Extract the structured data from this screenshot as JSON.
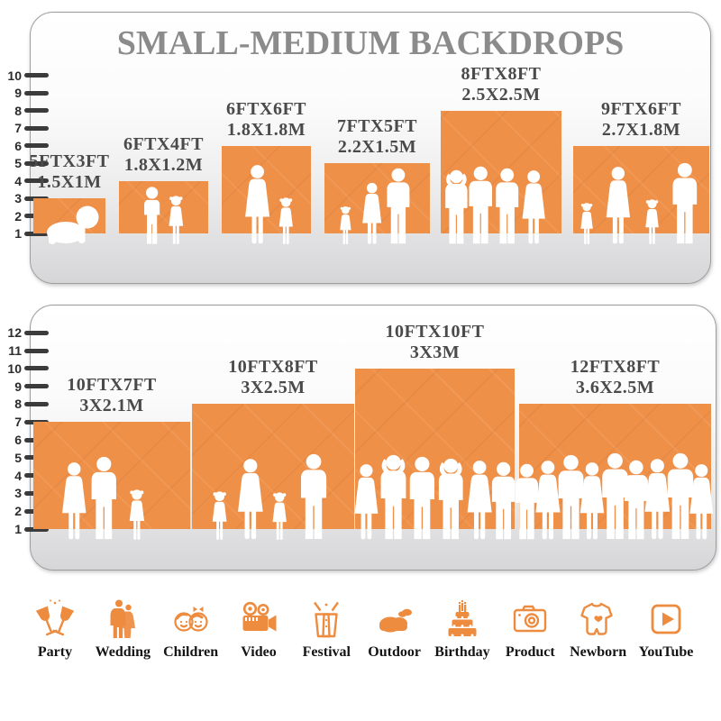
{
  "title": "SMALL-MEDIUM BACKDROPS",
  "colors": {
    "accent": "#ED8B3F",
    "bar": "#EF9049",
    "title": "#8B8B8B",
    "label": "#4A4A4A"
  },
  "panels": [
    {
      "name": "small-medium-top",
      "ruler_max": 10,
      "bars": [
        {
          "size_ft": "5FTX3FT",
          "size_m": "1.5X1M",
          "width_ft": 5,
          "height_ft": 3,
          "figures": [
            "baby"
          ]
        },
        {
          "size_ft": "6FTX4FT",
          "size_m": "1.8X1.2M",
          "width_ft": 6,
          "height_ft": 4,
          "figures": [
            "boy",
            "girl"
          ]
        },
        {
          "size_ft": "6FTX6FT",
          "size_m": "1.8X1.8M",
          "width_ft": 6,
          "height_ft": 6,
          "figures": [
            "woman",
            "girl"
          ]
        },
        {
          "size_ft": "7FTX5FT",
          "size_m": "2.2X1.5M",
          "width_ft": 7,
          "height_ft": 5,
          "figures": [
            "girl",
            "woman",
            "man"
          ]
        },
        {
          "size_ft": "8FTX8FT",
          "size_m": "2.5X2.5M",
          "width_ft": 8,
          "height_ft": 8,
          "figures": [
            "man-up",
            "man",
            "man",
            "woman"
          ]
        },
        {
          "size_ft": "9FTX6FT",
          "size_m": "2.7X1.8M",
          "width_ft": 9,
          "height_ft": 6,
          "figures": [
            "girl",
            "woman",
            "girl",
            "man"
          ]
        }
      ]
    },
    {
      "name": "medium-bottom",
      "ruler_max": 12,
      "bars": [
        {
          "size_ft": "10FTX7FT",
          "size_m": "3X2.1M",
          "width_ft": 10,
          "height_ft": 7,
          "figures": [
            "woman",
            "man",
            "girl"
          ]
        },
        {
          "size_ft": "10FTX8FT",
          "size_m": "3X2.5M",
          "width_ft": 10,
          "height_ft": 8,
          "figures": [
            "girl",
            "woman",
            "girl",
            "man"
          ]
        },
        {
          "size_ft": "10FTX10FT",
          "size_m": "3X3M",
          "width_ft": 10,
          "height_ft": 10,
          "figures": [
            "woman",
            "man-up",
            "man",
            "man-up",
            "woman",
            "man"
          ]
        },
        {
          "size_ft": "12FTX8FT",
          "size_m": "3.6X2.5M",
          "width_ft": 12,
          "height_ft": 8,
          "figures": [
            "man",
            "woman",
            "man",
            "woman",
            "man",
            "man",
            "woman",
            "man",
            "woman"
          ]
        }
      ]
    }
  ],
  "categories": [
    {
      "label": "Party",
      "icon": "party"
    },
    {
      "label": "Wedding",
      "icon": "wedding"
    },
    {
      "label": "Children",
      "icon": "children"
    },
    {
      "label": "Video",
      "icon": "video"
    },
    {
      "label": "Festival",
      "icon": "festival"
    },
    {
      "label": "Outdoor",
      "icon": "outdoor"
    },
    {
      "label": "Birthday",
      "icon": "birthday"
    },
    {
      "label": "Product",
      "icon": "product"
    },
    {
      "label": "Newborn",
      "icon": "newborn"
    },
    {
      "label": "YouTube",
      "icon": "youtube"
    }
  ],
  "chart_data": [
    {
      "type": "bar",
      "title": "SMALL-MEDIUM BACKDROPS",
      "categories": [
        "5FTX3FT",
        "6FTX4FT",
        "6FTX6FT",
        "7FTX5FT",
        "8FTX8FT",
        "9FTX6FT"
      ],
      "series": [
        {
          "name": "height_ft",
          "values": [
            3,
            4,
            6,
            5,
            8,
            6
          ]
        },
        {
          "name": "width_ft",
          "values": [
            5,
            6,
            6,
            7,
            8,
            9
          ]
        }
      ],
      "metric_labels": [
        "1.5X1M",
        "1.8X1.2M",
        "1.8X1.8M",
        "2.2X1.5M",
        "2.5X2.5M",
        "2.7X1.8M"
      ],
      "xlabel": "",
      "ylabel": "feet",
      "ylim": [
        0,
        10
      ],
      "grid": false,
      "legend": false
    },
    {
      "type": "bar",
      "title": "",
      "categories": [
        "10FTX7FT",
        "10FTX8FT",
        "10FTX10FT",
        "12FTX8FT"
      ],
      "series": [
        {
          "name": "height_ft",
          "values": [
            7,
            8,
            10,
            8
          ]
        },
        {
          "name": "width_ft",
          "values": [
            10,
            10,
            10,
            12
          ]
        }
      ],
      "metric_labels": [
        "3X2.1M",
        "3X2.5M",
        "3X3M",
        "3.6X2.5M"
      ],
      "xlabel": "",
      "ylabel": "feet",
      "ylim": [
        0,
        12
      ],
      "grid": false,
      "legend": false
    }
  ]
}
